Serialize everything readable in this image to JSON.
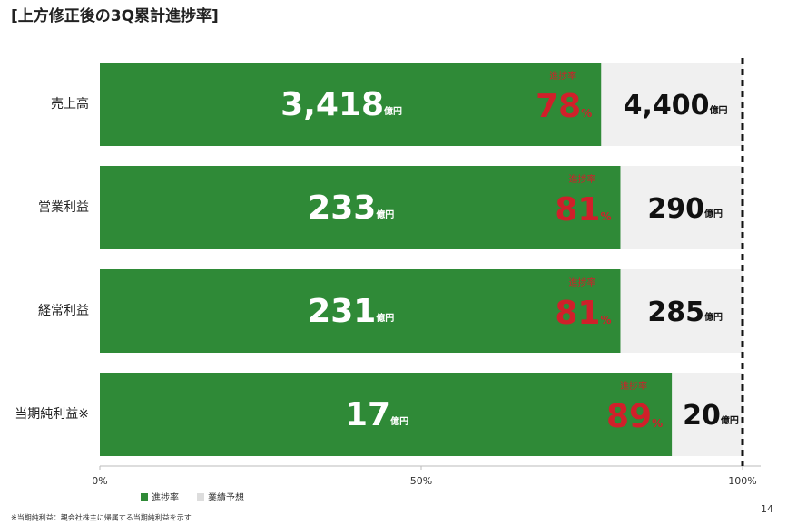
{
  "title": "[上方修正後の3Q累計進捗率]",
  "footnote": "※当期純利益：親会社株主に帰属する当期純利益を示す",
  "page_number": "14",
  "chart_data": {
    "type": "bar",
    "orientation": "horizontal",
    "categories": [
      "売上高",
      "営業利益",
      "経常利益",
      "当期純利益※"
    ],
    "series": [
      {
        "name": "進捗率",
        "color": "#2f8a37",
        "values": [
          78,
          81,
          81,
          89
        ]
      },
      {
        "name": "業績予想",
        "color": "#f0f0f0",
        "values": [
          100,
          100,
          100,
          100
        ]
      }
    ],
    "actual_labels": [
      "3,418",
      "233",
      "231",
      "17"
    ],
    "forecast_labels": [
      "4,400",
      "290",
      "285",
      "20"
    ],
    "amount_unit": "億円",
    "progress_caption": "進捗率",
    "percent_unit": "%",
    "progress_color": "#d0202a",
    "xlim": [
      0,
      100
    ],
    "xticks": [
      {
        "value": 0,
        "label": "0%"
      },
      {
        "value": 50,
        "label": "50%"
      },
      {
        "value": 100,
        "label": "100%"
      }
    ],
    "reference_line": 100,
    "legend": "bottom-left"
  }
}
